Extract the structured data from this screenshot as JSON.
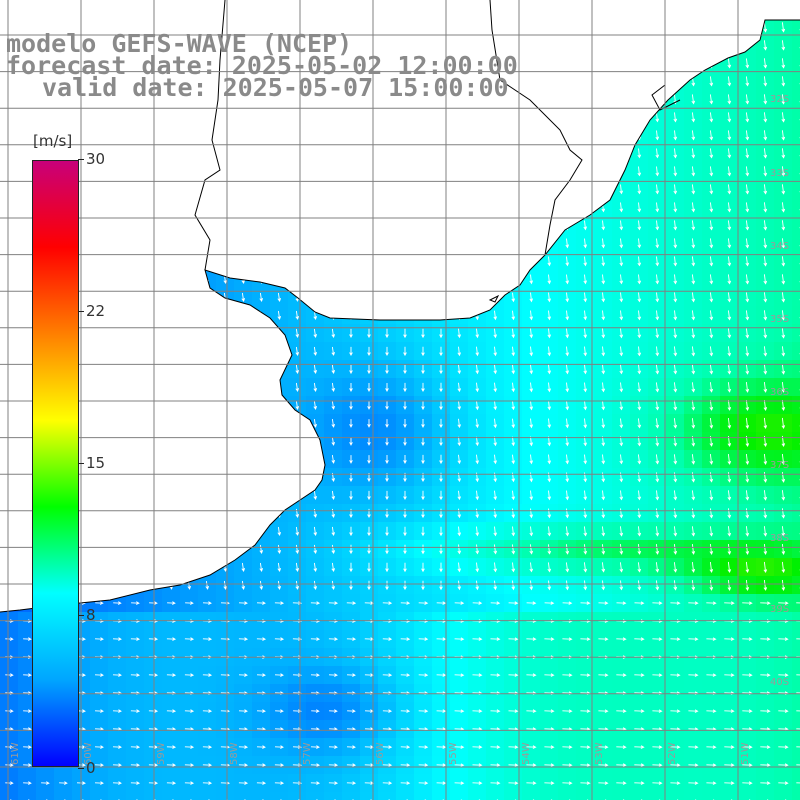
{
  "titles": {
    "line1": "modelo GEFS-WAVE (NCEP)",
    "line2": "forecast date: 2025-05-02 12:00:00",
    "line3": "valid date: 2025-05-07 15:00:00"
  },
  "colorbar": {
    "unit": "[m/s]",
    "ticks": [
      "30",
      "22",
      "15",
      "8",
      "0"
    ],
    "tick_values": [
      30,
      22,
      15,
      8,
      0
    ],
    "range": [
      0,
      30
    ],
    "colors": [
      "#0000ff",
      "#00a6ff",
      "#00ffff",
      "#00ff00",
      "#ffff00",
      "#ff7f00",
      "#ff0000",
      "#c8007a"
    ]
  },
  "map": {
    "variable": "wind speed and direction",
    "grid_lines": true,
    "land_color": "#ffffff",
    "coastline_color": "#000000",
    "lat_labels": [
      "32S",
      "33S",
      "34S",
      "35S",
      "36S",
      "37S",
      "38S",
      "39S",
      "40S"
    ],
    "lon_labels": [
      "61W",
      "60W",
      "59W",
      "58W",
      "57W",
      "56W",
      "55W",
      "54W",
      "53W",
      "52W",
      "51W"
    ],
    "wind_direction": "north-to-south in the east, west-to-east in the south"
  }
}
